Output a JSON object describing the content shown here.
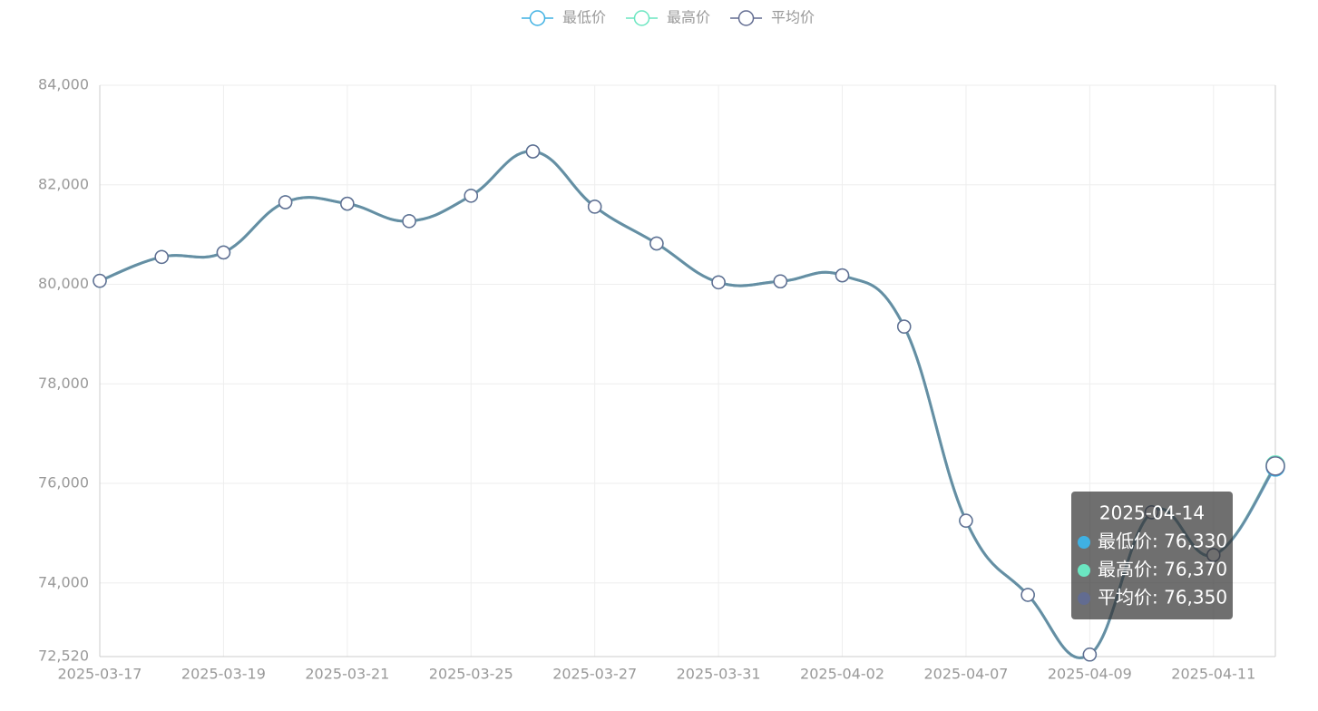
{
  "chart_data": {
    "type": "line",
    "categories": [
      "2025-03-17",
      null,
      "2025-03-19",
      null,
      "2025-03-21",
      null,
      "2025-03-25",
      null,
      "2025-03-27",
      null,
      "2025-03-31",
      null,
      "2025-04-02",
      null,
      "2025-04-07",
      null,
      "2025-04-09",
      null,
      "2025-04-11",
      null
    ],
    "series": [
      {
        "name": "最低价",
        "color": "#3fb1e3",
        "values": [
          80070,
          80550,
          80640,
          81650,
          81620,
          81270,
          81780,
          82670,
          81560,
          80820,
          80040,
          80060,
          80180,
          79150,
          75250,
          73760,
          72560,
          75420,
          74560,
          76330
        ]
      },
      {
        "name": "最高价",
        "color": "#6be6c1",
        "values": [
          80070,
          80550,
          80640,
          81650,
          81620,
          81270,
          81780,
          82670,
          81560,
          80820,
          80040,
          80060,
          80180,
          79150,
          75250,
          73760,
          72560,
          75420,
          74560,
          76370
        ]
      },
      {
        "name": "平均价",
        "color": "#626c91",
        "values": [
          80070,
          80550,
          80640,
          81650,
          81620,
          81270,
          81780,
          82670,
          81560,
          80820,
          80040,
          80060,
          80180,
          79150,
          75250,
          73760,
          72560,
          75420,
          74560,
          76350
        ]
      }
    ],
    "ylim": [
      72520,
      84000
    ],
    "yticks": [
      {
        "value": 72520,
        "label": "72,520"
      },
      {
        "value": 74000,
        "label": "74,000"
      },
      {
        "value": 76000,
        "label": "76,000"
      },
      {
        "value": 78000,
        "label": "78,000"
      },
      {
        "value": 80000,
        "label": "80,000"
      },
      {
        "value": 82000,
        "label": "82,000"
      },
      {
        "value": 84000,
        "label": "84,000"
      }
    ],
    "grid": true,
    "legend": "top",
    "tooltip": {
      "title": "2025-04-14",
      "rows": [
        {
          "text": "最低价: 76,330",
          "value": 76330
        },
        {
          "text": "最高价: 76,370",
          "value": 76370
        },
        {
          "text": "平均价: 76,350",
          "value": 76350
        }
      ]
    }
  }
}
